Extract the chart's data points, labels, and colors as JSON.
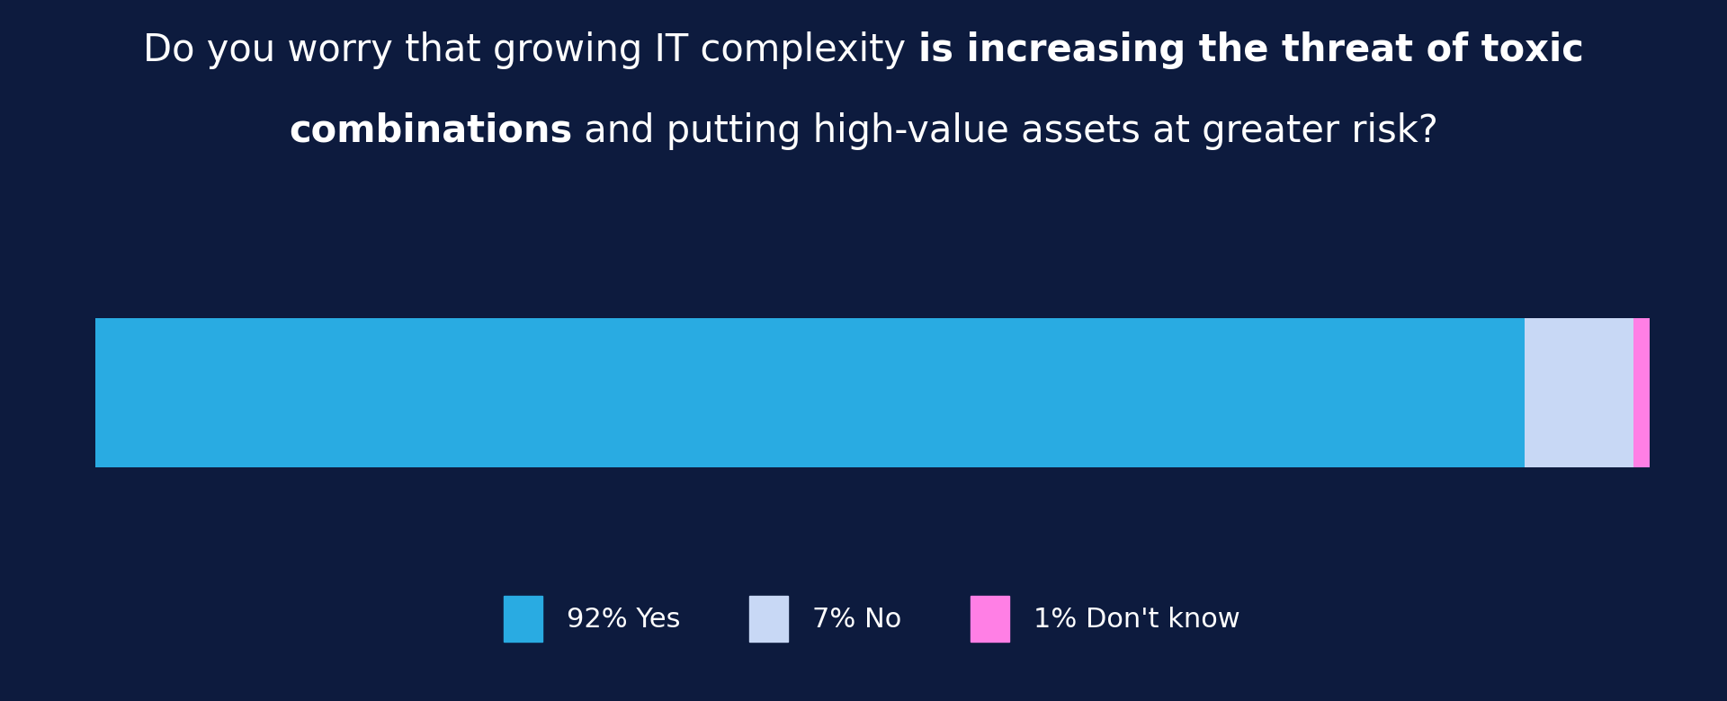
{
  "values": [
    92,
    7,
    1
  ],
  "colors": [
    "#29ABE2",
    "#C8D8F5",
    "#FF7FE5"
  ],
  "labels": [
    "92% Yes",
    "7% No",
    "1% Don't know"
  ],
  "background_color": "#0D1B3E",
  "text_color": "#FFFFFF",
  "title_fontsize": 30,
  "legend_fontsize": 22,
  "line1_parts": [
    [
      "Do you worry that growing IT complexity ",
      false
    ],
    [
      "is increasing the threat of toxic",
      true
    ]
  ],
  "line2_parts": [
    [
      "combinations",
      true
    ],
    [
      " and putting high-value assets at greater risk?",
      false
    ]
  ]
}
